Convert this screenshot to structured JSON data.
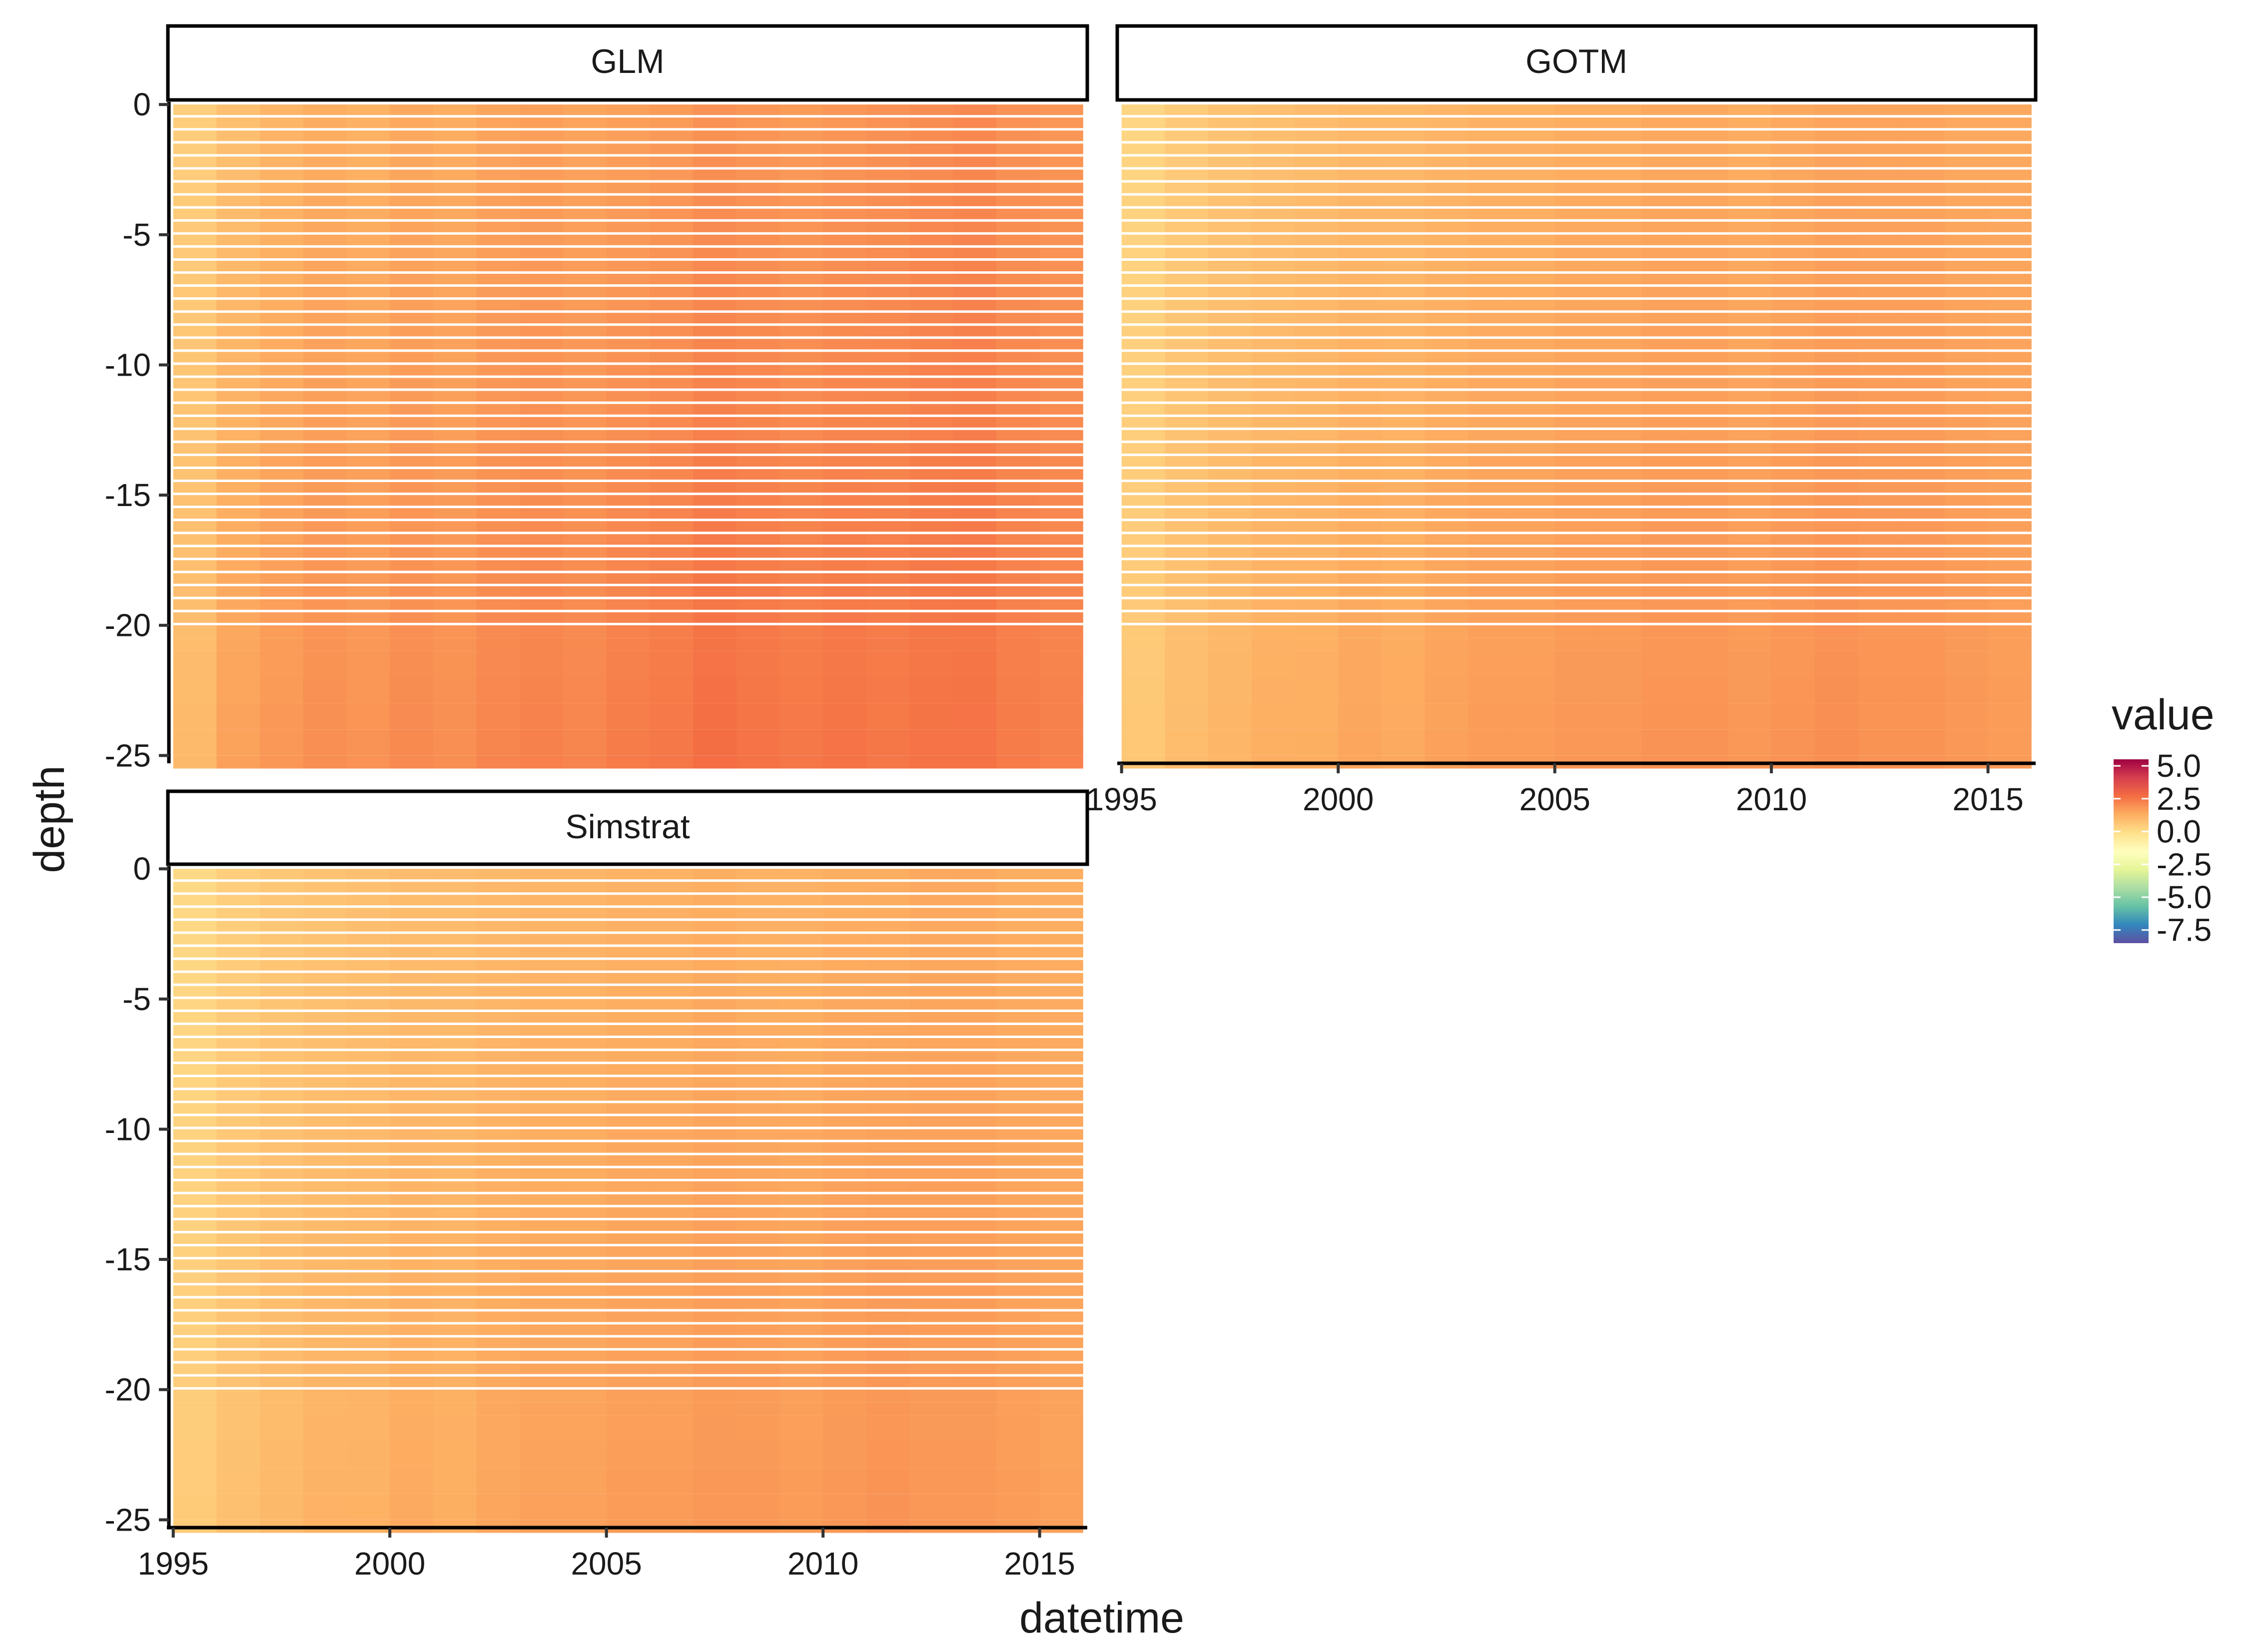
{
  "chart_data": {
    "type": "heatmap",
    "xlabel": "datetime",
    "ylabel": "depth",
    "xlim": [
      1994.9,
      2016.1
    ],
    "ylim": [
      -25.3,
      0.1
    ],
    "x_ticks": [
      1995,
      2000,
      2005,
      2010,
      2015
    ],
    "y_ticks": [
      0,
      -5,
      -10,
      -15,
      -20,
      -25
    ],
    "x_tick_labels": [
      "1995",
      "2000",
      "2005",
      "2010",
      "2015"
    ],
    "y_tick_labels": [
      "0",
      "-5",
      "-10",
      "-15",
      "-20",
      "-25"
    ],
    "depth_levels": [
      0,
      -0.5,
      -1,
      -1.5,
      -2,
      -2.5,
      -3,
      -3.5,
      -4,
      -4.5,
      -5,
      -5.5,
      -6,
      -6.5,
      -7,
      -7.5,
      -8,
      -8.5,
      -9,
      -9.5,
      -10,
      -10.5,
      -11,
      -11.5,
      -12,
      -12.5,
      -13,
      -13.5,
      -14,
      -14.5,
      -15,
      -15.5,
      -16,
      -16.5,
      -17,
      -17.5,
      -18,
      -18.5,
      -19,
      -19.5,
      -20,
      -20.5,
      -21,
      -22,
      -23,
      -24,
      -25
    ],
    "legend": {
      "title": "value",
      "labels": [
        "5.0",
        "2.5",
        "0.0",
        "-2.5",
        "-5.0",
        "-7.5"
      ],
      "breaks": [
        5.0,
        2.5,
        0.0,
        -2.5,
        -5.0,
        -7.5
      ],
      "range": [
        -8.5,
        5.5
      ],
      "position": "right",
      "palette": "Spectral",
      "colors": [
        "#5E4FA2",
        "#3288BD",
        "#66C2A5",
        "#ABDDA4",
        "#E6F598",
        "#FFFFBF",
        "#FEE08B",
        "#FDAE61",
        "#F46D43",
        "#D53E4F",
        "#9E0142"
      ]
    },
    "panels": [
      {
        "title": "GLM",
        "years": [
          1995,
          1996,
          1997,
          1998,
          1999,
          2000,
          2001,
          2002,
          2003,
          2004,
          2005,
          2006,
          2007,
          2008,
          2009,
          2010,
          2011,
          2012,
          2013,
          2014,
          2015
        ],
        "surface_values": [
          0.4,
          0.8,
          1.1,
          1.3,
          1.2,
          1.4,
          1.3,
          1.5,
          1.6,
          1.5,
          1.6,
          1.7,
          1.9,
          1.8,
          1.7,
          1.8,
          1.9,
          2.0,
          2.1,
          1.9,
          1.8
        ],
        "bottom_values": [
          1.0,
          1.6,
          1.8,
          2.0,
          1.9,
          2.1,
          2.0,
          2.2,
          2.3,
          2.2,
          2.4,
          2.5,
          2.7,
          2.6,
          2.5,
          2.6,
          2.5,
          2.6,
          2.6,
          2.4,
          2.3
        ]
      },
      {
        "title": "GOTM",
        "years": [
          1995,
          1996,
          1997,
          1998,
          1999,
          2000,
          2001,
          2002,
          2003,
          2004,
          2005,
          2006,
          2007,
          2008,
          2009,
          2010,
          2011,
          2012,
          2013,
          2014,
          2015
        ],
        "surface_values": [
          0.2,
          0.5,
          0.7,
          0.8,
          0.9,
          1.0,
          1.0,
          1.1,
          1.2,
          1.2,
          1.3,
          1.3,
          1.4,
          1.4,
          1.3,
          1.4,
          1.5,
          1.5,
          1.5,
          1.4,
          1.4
        ],
        "bottom_values": [
          0.6,
          0.9,
          1.1,
          1.3,
          1.3,
          1.5,
          1.4,
          1.6,
          1.7,
          1.7,
          1.8,
          1.8,
          1.9,
          1.9,
          1.8,
          1.9,
          2.0,
          1.9,
          1.9,
          1.8,
          1.7
        ]
      },
      {
        "title": "Simstrat",
        "years": [
          1995,
          1996,
          1997,
          1998,
          1999,
          2000,
          2001,
          2002,
          2003,
          2004,
          2005,
          2006,
          2007,
          2008,
          2009,
          2010,
          2011,
          2012,
          2013,
          2014,
          2015
        ],
        "surface_values": [
          0.1,
          0.4,
          0.6,
          0.7,
          0.8,
          0.9,
          0.9,
          1.0,
          1.1,
          1.1,
          1.2,
          1.2,
          1.3,
          1.2,
          1.2,
          1.3,
          1.3,
          1.4,
          1.4,
          1.3,
          1.3
        ],
        "bottom_values": [
          0.5,
          0.8,
          1.0,
          1.2,
          1.2,
          1.4,
          1.3,
          1.5,
          1.6,
          1.6,
          1.7,
          1.7,
          1.8,
          1.8,
          1.7,
          1.8,
          1.9,
          1.8,
          1.8,
          1.7,
          1.6
        ]
      }
    ]
  }
}
